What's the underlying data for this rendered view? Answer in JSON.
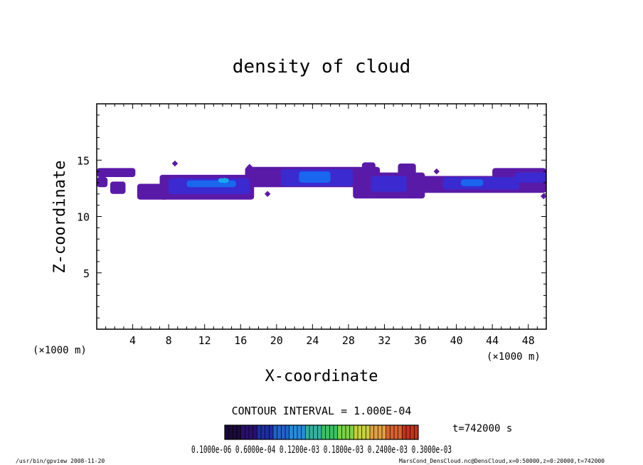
{
  "chart_data": {
    "type": "heatmap",
    "title": "density of cloud",
    "xlabel": "X-coordinate",
    "ylabel": "Z-coordinate",
    "x_unit": "(×1000 m)",
    "y_unit": "(×1000 m)",
    "xlim": [
      0,
      50
    ],
    "ylim": [
      0,
      20
    ],
    "x_ticks": [
      4,
      8,
      12,
      16,
      20,
      24,
      28,
      32,
      36,
      40,
      44,
      48
    ],
    "y_ticks": [
      5,
      10,
      15
    ],
    "contour_interval_text": "CONTOUR INTERVAL = 1.000E-04",
    "time_text": "t=742000  s",
    "colorbar_labels_text": "0.1000e-06  0.6000e-04  0.1200e-03  0.1800e-03  0.2400e-03  0.3000e-03",
    "colorbar_colors": [
      "#1a0a3a",
      "#2a0f6e",
      "#1c2fa0",
      "#1f64c8",
      "#2a8ad8",
      "#35b0a0",
      "#3fc260",
      "#7bd24a",
      "#c8d040",
      "#e0a040",
      "#d86030",
      "#c83020"
    ],
    "cloud_colors": {
      "low": "#5a1aa8",
      "mid": "#3a2ad0",
      "high": "#1a66ee",
      "peak": "#19a6f2"
    },
    "cloud_bands": [
      {
        "x0": 0.0,
        "x1": 4.3,
        "z0": 13.5,
        "z1": 14.3,
        "level": "low"
      },
      {
        "x0": 0.0,
        "x1": 1.2,
        "z0": 12.6,
        "z1": 13.5,
        "level": "low"
      },
      {
        "x0": 1.5,
        "x1": 3.2,
        "z0": 12.0,
        "z1": 13.1,
        "level": "low"
      },
      {
        "x0": 4.5,
        "x1": 8.0,
        "z0": 11.5,
        "z1": 12.9,
        "level": "low"
      },
      {
        "x0": 7.0,
        "x1": 17.5,
        "z0": 11.5,
        "z1": 13.7,
        "level": "low"
      },
      {
        "x0": 8.0,
        "x1": 17.0,
        "z0": 12.0,
        "z1": 13.4,
        "level": "mid"
      },
      {
        "x0": 10.0,
        "x1": 15.5,
        "z0": 12.6,
        "z1": 13.2,
        "level": "high"
      },
      {
        "x0": 13.5,
        "x1": 14.7,
        "z0": 13.0,
        "z1": 13.4,
        "level": "peak"
      },
      {
        "x0": 16.5,
        "x1": 31.5,
        "z0": 12.6,
        "z1": 14.4,
        "level": "low"
      },
      {
        "x0": 20.5,
        "x1": 28.5,
        "z0": 12.7,
        "z1": 14.2,
        "level": "mid"
      },
      {
        "x0": 22.5,
        "x1": 26.0,
        "z0": 13.0,
        "z1": 14.0,
        "level": "high"
      },
      {
        "x0": 29.5,
        "x1": 31.0,
        "z0": 14.0,
        "z1": 14.8,
        "level": "low"
      },
      {
        "x0": 28.5,
        "x1": 36.5,
        "z0": 11.6,
        "z1": 13.9,
        "level": "low"
      },
      {
        "x0": 30.5,
        "x1": 34.5,
        "z0": 12.2,
        "z1": 13.6,
        "level": "mid"
      },
      {
        "x0": 33.5,
        "x1": 35.5,
        "z0": 13.5,
        "z1": 14.7,
        "level": "low"
      },
      {
        "x0": 35.5,
        "x1": 50.0,
        "z0": 12.1,
        "z1": 13.6,
        "level": "low"
      },
      {
        "x0": 38.5,
        "x1": 47.0,
        "z0": 12.4,
        "z1": 13.5,
        "level": "mid"
      },
      {
        "x0": 40.5,
        "x1": 43.0,
        "z0": 12.7,
        "z1": 13.3,
        "level": "high"
      },
      {
        "x0": 44.0,
        "x1": 50.0,
        "z0": 13.4,
        "z1": 14.3,
        "level": "low"
      },
      {
        "x0": 46.5,
        "x1": 50.0,
        "z0": 13.0,
        "z1": 13.9,
        "level": "mid"
      }
    ],
    "cloud_specks": [
      {
        "x": 8.7,
        "z": 14.7,
        "level": "low"
      },
      {
        "x": 17.0,
        "z": 14.4,
        "level": "low"
      },
      {
        "x": 19.0,
        "z": 12.0,
        "level": "low"
      },
      {
        "x": 37.8,
        "z": 14.0,
        "level": "low"
      },
      {
        "x": 49.7,
        "z": 11.8,
        "level": "low"
      },
      {
        "x": 14.2,
        "z": 13.2,
        "level": "peak"
      }
    ]
  },
  "footer": {
    "left_text": "/usr/bin/gpview   2008-11-20",
    "right_text": "MarsCond_DensCloud.nc@DensCloud,x=0:50000,z=0:20000,t=742000"
  }
}
